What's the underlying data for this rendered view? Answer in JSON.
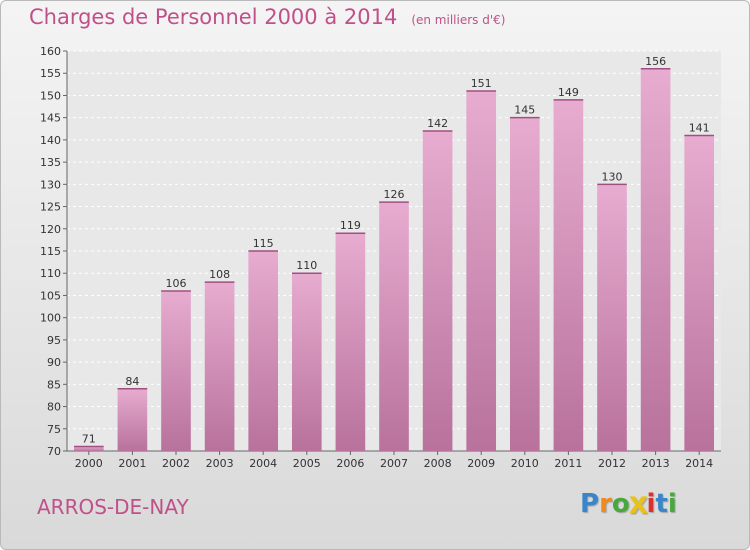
{
  "chart_data": {
    "type": "bar",
    "title": "Charges de Personnel 2000 à 2014",
    "subtitle": "(en milliers d'€)",
    "categories": [
      "2000",
      "2001",
      "2002",
      "2003",
      "2004",
      "2005",
      "2006",
      "2007",
      "2008",
      "2009",
      "2010",
      "2011",
      "2012",
      "2013",
      "2014"
    ],
    "values": [
      71,
      84,
      106,
      108,
      115,
      110,
      119,
      126,
      142,
      151,
      145,
      149,
      130,
      156,
      141
    ],
    "ylim": [
      70,
      160
    ],
    "yticks": [
      70,
      75,
      80,
      85,
      90,
      95,
      100,
      105,
      110,
      115,
      120,
      125,
      130,
      135,
      140,
      145,
      150,
      155,
      160
    ],
    "grid": true,
    "bar_color": "#d98db8"
  },
  "location": "ARROS-DE-NAY",
  "logo": {
    "letters": [
      "P",
      "r",
      "o",
      "x",
      "i",
      "t",
      "i"
    ],
    "colors": [
      "#3a86c8",
      "#f08a1c",
      "#49a83c",
      "#e8c21a",
      "#d8312e",
      "#3a86c8",
      "#49a83c"
    ]
  }
}
